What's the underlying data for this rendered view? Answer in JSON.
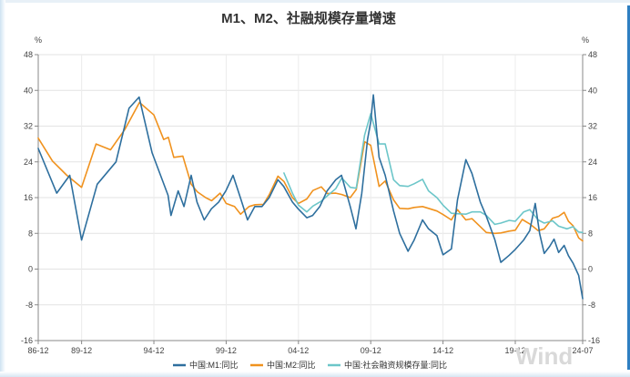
{
  "chart_data": {
    "type": "line",
    "title": "M1、M2、社融规模存量增速",
    "unit_left": "%",
    "unit_right": "%",
    "ylim": [
      -16,
      48
    ],
    "y_ticks": [
      -16,
      -8,
      0,
      8,
      16,
      24,
      32,
      40,
      48
    ],
    "x_range": [
      1986.92,
      2024.58
    ],
    "x_ticks": [
      {
        "label": "86-12",
        "x": 1986.92
      },
      {
        "label": "89-12",
        "x": 1989.92
      },
      {
        "label": "94-12",
        "x": 1994.92
      },
      {
        "label": "99-12",
        "x": 1999.92
      },
      {
        "label": "04-12",
        "x": 2004.92
      },
      {
        "label": "09-12",
        "x": 2009.92
      },
      {
        "label": "14-12",
        "x": 2014.92
      },
      {
        "label": "19-12",
        "x": 2019.92
      },
      {
        "label": "24-07",
        "x": 2024.58
      }
    ],
    "grid": true,
    "legend_position": "bottom",
    "watermark": "Wind",
    "colors": {
      "m1": "#2e6f9e",
      "m2": "#f0921e",
      "tsf": "#6cc6c9"
    },
    "series": [
      {
        "name": "中国:M1:同比",
        "key": "m1",
        "points": [
          [
            1986.92,
            27
          ],
          [
            1988.2,
            17
          ],
          [
            1989.1,
            21
          ],
          [
            1989.92,
            6.5
          ],
          [
            1991.0,
            19
          ],
          [
            1992.3,
            24
          ],
          [
            1993.2,
            36
          ],
          [
            1993.9,
            38.5
          ],
          [
            1994.8,
            26
          ],
          [
            1995.9,
            16.5
          ],
          [
            1996.1,
            12
          ],
          [
            1996.6,
            17.5
          ],
          [
            1997.0,
            14
          ],
          [
            1997.5,
            21
          ],
          [
            1997.9,
            15
          ],
          [
            1998.4,
            11
          ],
          [
            1998.9,
            13.5
          ],
          [
            1999.4,
            15
          ],
          [
            1999.9,
            17.5
          ],
          [
            2000.4,
            21
          ],
          [
            2000.9,
            16
          ],
          [
            2001.4,
            11
          ],
          [
            2001.9,
            14
          ],
          [
            2002.4,
            14
          ],
          [
            2002.9,
            16
          ],
          [
            2003.5,
            20
          ],
          [
            2003.9,
            18.5
          ],
          [
            2004.5,
            15
          ],
          [
            2004.9,
            13.5
          ],
          [
            2005.5,
            11.5
          ],
          [
            2005.9,
            12
          ],
          [
            2006.4,
            14
          ],
          [
            2006.9,
            17.5
          ],
          [
            2007.5,
            20
          ],
          [
            2007.9,
            21
          ],
          [
            2008.5,
            14
          ],
          [
            2008.9,
            9
          ],
          [
            2009.3,
            17
          ],
          [
            2009.7,
            29
          ],
          [
            2009.92,
            33
          ],
          [
            2010.1,
            39
          ],
          [
            2010.5,
            25
          ],
          [
            2010.92,
            21
          ],
          [
            2011.5,
            13
          ],
          [
            2011.92,
            8
          ],
          [
            2012.5,
            4
          ],
          [
            2012.92,
            6.5
          ],
          [
            2013.5,
            11
          ],
          [
            2013.92,
            9
          ],
          [
            2014.5,
            7.5
          ],
          [
            2014.92,
            3.2
          ],
          [
            2015.5,
            4.5
          ],
          [
            2015.92,
            15.5
          ],
          [
            2016.5,
            24.5
          ],
          [
            2016.92,
            21.4
          ],
          [
            2017.5,
            15
          ],
          [
            2017.92,
            11.8
          ],
          [
            2018.5,
            6.6
          ],
          [
            2018.92,
            1.5
          ],
          [
            2019.5,
            3.1
          ],
          [
            2019.92,
            4.4
          ],
          [
            2020.5,
            6.5
          ],
          [
            2020.92,
            8.6
          ],
          [
            2021.3,
            14.7
          ],
          [
            2021.6,
            8
          ],
          [
            2021.92,
            3.5
          ],
          [
            2022.3,
            5.1
          ],
          [
            2022.6,
            6.7
          ],
          [
            2022.92,
            3.7
          ],
          [
            2023.3,
            5.3
          ],
          [
            2023.6,
            3
          ],
          [
            2023.92,
            1.3
          ],
          [
            2024.3,
            -1.4
          ],
          [
            2024.58,
            -6.6
          ]
        ]
      },
      {
        "name": "中国:M2:同比",
        "key": "m2",
        "points": [
          [
            1986.92,
            29.3
          ],
          [
            1987.9,
            24.2
          ],
          [
            1988.9,
            21
          ],
          [
            1989.92,
            18.3
          ],
          [
            1990.92,
            28
          ],
          [
            1991.92,
            26.7
          ],
          [
            1992.92,
            31.3
          ],
          [
            1993.92,
            37.3
          ],
          [
            1994.92,
            34.5
          ],
          [
            1995.6,
            29
          ],
          [
            1995.92,
            29.5
          ],
          [
            1996.3,
            25
          ],
          [
            1996.92,
            25.3
          ],
          [
            1997.5,
            19
          ],
          [
            1997.92,
            17.3
          ],
          [
            1998.5,
            16
          ],
          [
            1998.92,
            15.3
          ],
          [
            1999.5,
            17
          ],
          [
            1999.92,
            14.7
          ],
          [
            2000.5,
            14
          ],
          [
            2000.92,
            12.3
          ],
          [
            2001.5,
            14
          ],
          [
            2001.92,
            14.4
          ],
          [
            2002.5,
            14.5
          ],
          [
            2002.92,
            16.8
          ],
          [
            2003.5,
            20.8
          ],
          [
            2003.92,
            19.6
          ],
          [
            2004.5,
            16
          ],
          [
            2004.92,
            14.7
          ],
          [
            2005.5,
            15.7
          ],
          [
            2005.92,
            17.6
          ],
          [
            2006.5,
            18.4
          ],
          [
            2006.92,
            16.9
          ],
          [
            2007.5,
            17
          ],
          [
            2007.92,
            16.7
          ],
          [
            2008.5,
            16
          ],
          [
            2008.92,
            17.8
          ],
          [
            2009.5,
            28.5
          ],
          [
            2009.92,
            27.7
          ],
          [
            2010.5,
            18.5
          ],
          [
            2010.92,
            19.7
          ],
          [
            2011.5,
            15.5
          ],
          [
            2011.92,
            13.6
          ],
          [
            2012.5,
            13.5
          ],
          [
            2012.92,
            13.8
          ],
          [
            2013.5,
            14
          ],
          [
            2013.92,
            13.6
          ],
          [
            2014.5,
            13
          ],
          [
            2014.92,
            12.2
          ],
          [
            2015.5,
            11
          ],
          [
            2015.92,
            13.3
          ],
          [
            2016.5,
            11
          ],
          [
            2016.92,
            11.3
          ],
          [
            2017.5,
            9.5
          ],
          [
            2017.92,
            8.2
          ],
          [
            2018.5,
            8
          ],
          [
            2018.92,
            8.1
          ],
          [
            2019.5,
            8.5
          ],
          [
            2019.92,
            8.7
          ],
          [
            2020.4,
            11.1
          ],
          [
            2020.92,
            10.1
          ],
          [
            2021.5,
            8.6
          ],
          [
            2021.92,
            9
          ],
          [
            2022.5,
            11.4
          ],
          [
            2022.92,
            11.8
          ],
          [
            2023.3,
            12.7
          ],
          [
            2023.6,
            10.7
          ],
          [
            2023.92,
            9.7
          ],
          [
            2024.3,
            7
          ],
          [
            2024.58,
            6.3
          ]
        ]
      },
      {
        "name": "中国:社会融资规模存量:同比",
        "key": "tsf",
        "points": [
          [
            2003.92,
            21.5
          ],
          [
            2004.5,
            17
          ],
          [
            2004.92,
            14.3
          ],
          [
            2005.5,
            12.8
          ],
          [
            2005.92,
            14.1
          ],
          [
            2006.5,
            15.2
          ],
          [
            2006.92,
            16.4
          ],
          [
            2007.5,
            18
          ],
          [
            2007.92,
            20.4
          ],
          [
            2008.5,
            18.3
          ],
          [
            2008.92,
            18.1
          ],
          [
            2009.5,
            30
          ],
          [
            2009.92,
            34.8
          ],
          [
            2010.5,
            28
          ],
          [
            2010.92,
            28
          ],
          [
            2011.5,
            20
          ],
          [
            2011.92,
            18.7
          ],
          [
            2012.5,
            18.5
          ],
          [
            2012.92,
            19.1
          ],
          [
            2013.5,
            20.1
          ],
          [
            2013.92,
            17.5
          ],
          [
            2014.5,
            16
          ],
          [
            2014.92,
            14.3
          ],
          [
            2015.5,
            12.5
          ],
          [
            2015.92,
            12.4
          ],
          [
            2016.5,
            12.3
          ],
          [
            2016.92,
            12.8
          ],
          [
            2017.5,
            12.8
          ],
          [
            2017.92,
            12
          ],
          [
            2018.5,
            10
          ],
          [
            2018.92,
            10.3
          ],
          [
            2019.5,
            10.9
          ],
          [
            2019.92,
            10.7
          ],
          [
            2020.5,
            12.8
          ],
          [
            2020.92,
            13.3
          ],
          [
            2021.5,
            11
          ],
          [
            2021.92,
            10.3
          ],
          [
            2022.5,
            10.8
          ],
          [
            2022.92,
            9.6
          ],
          [
            2023.5,
            9
          ],
          [
            2023.92,
            9.5
          ],
          [
            2024.3,
            8.3
          ],
          [
            2024.58,
            8.2
          ]
        ]
      }
    ]
  }
}
